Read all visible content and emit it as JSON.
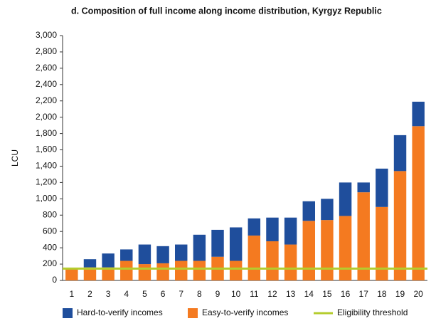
{
  "chart_data": {
    "type": "bar",
    "stacked": true,
    "title": "d. Composition of full income along income distribution, Kyrgyz Republic",
    "ylabel": "LCU",
    "categories": [
      "1",
      "2",
      "3",
      "4",
      "5",
      "6",
      "7",
      "8",
      "9",
      "10",
      "11",
      "12",
      "13",
      "14",
      "15",
      "16",
      "17",
      "18",
      "19",
      "20"
    ],
    "series": [
      {
        "name": "Hard-to-verify incomes",
        "color": "#1f4e9c",
        "values": [
          0,
          100,
          170,
          140,
          240,
          210,
          200,
          320,
          330,
          410,
          210,
          290,
          330,
          240,
          260,
          410,
          120,
          470,
          440,
          300
        ]
      },
      {
        "name": "Easy-to-verify incomes",
        "color": "#f47a20",
        "values": [
          140,
          160,
          160,
          240,
          200,
          210,
          240,
          240,
          290,
          240,
          550,
          480,
          440,
          730,
          740,
          790,
          1080,
          900,
          1340,
          1890
        ]
      }
    ],
    "threshold": {
      "name": "Eligibility threshold",
      "value": 145,
      "color": "#b5cc2e"
    },
    "ylim": [
      0,
      3000
    ],
    "yticks": [
      0,
      200,
      400,
      600,
      800,
      {
        "value": 1000,
        "label": "1,000"
      },
      {
        "value": 1200,
        "label": "1,200"
      },
      {
        "value": 1400,
        "label": "1,400"
      },
      {
        "value": 1600,
        "label": "1,600"
      },
      {
        "value": 1800,
        "label": "1,800"
      },
      {
        "value": 2000,
        "label": "2,000"
      },
      {
        "value": 2200,
        "label": "2,200"
      },
      {
        "value": 2400,
        "label": "2,400"
      },
      {
        "value": 2600,
        "label": "2,600"
      },
      {
        "value": 2800,
        "label": "2,800"
      },
      {
        "value": 3000,
        "label": "3,000"
      }
    ],
    "legend": "bottom"
  }
}
